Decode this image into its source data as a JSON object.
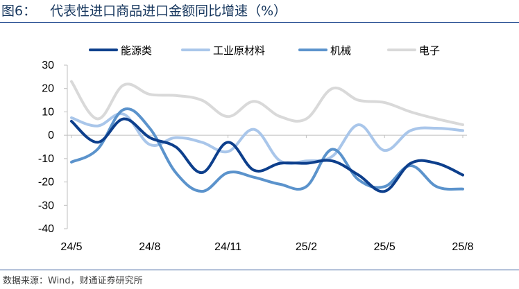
{
  "figure": {
    "number": "图6：",
    "title": "代表性进口商品进口金额同比增速（%）",
    "source": "数据来源：Wind，财通证券研究所"
  },
  "chart_data": {
    "type": "line",
    "ylim": [
      -40,
      30
    ],
    "yticks": [
      30,
      20,
      10,
      0,
      -10,
      -20,
      -30,
      -40
    ],
    "x": [
      "2024-05",
      "2024-06",
      "2024-07",
      "2024-08",
      "2024-09",
      "2024-10",
      "2024-11",
      "2024-12",
      "2025-01",
      "2025-02",
      "2025-03",
      "2025-04",
      "2025-05",
      "2025-06",
      "2025-07",
      "2025-08"
    ],
    "xtick_labels": [
      "24/5",
      "24/8",
      "24/11",
      "25/2",
      "25/5",
      "25/8"
    ],
    "xtick_index": [
      0,
      3,
      6,
      9,
      12,
      15
    ],
    "grid": false,
    "legend_position": "top",
    "series": [
      {
        "name": "能源类",
        "color": "#0d3f8c",
        "values": [
          6,
          -3,
          7,
          -1,
          -5,
          -16,
          -3,
          -15,
          -12,
          -12,
          -11,
          -17,
          -24,
          -12,
          -12,
          -17
        ]
      },
      {
        "name": "工业原材料",
        "color": "#a9c6ea",
        "values": [
          7.5,
          4,
          9,
          -4,
          -1,
          -3,
          -7,
          2.5,
          -11,
          -11,
          -9,
          4.5,
          -6.5,
          2,
          3,
          2
        ]
      },
      {
        "name": "机械",
        "color": "#5b93cc",
        "values": [
          -11.5,
          -6,
          11,
          3,
          -16,
          -24,
          -16,
          -18,
          -21,
          -22,
          -6,
          -19,
          -22,
          -13,
          -22,
          -23
        ]
      },
      {
        "name": "电子",
        "color": "#d9d9d9",
        "values": [
          23,
          7,
          21.5,
          17.5,
          17,
          15,
          8,
          14.5,
          8,
          7,
          20,
          15,
          14,
          10,
          7,
          4.5
        ]
      }
    ]
  }
}
